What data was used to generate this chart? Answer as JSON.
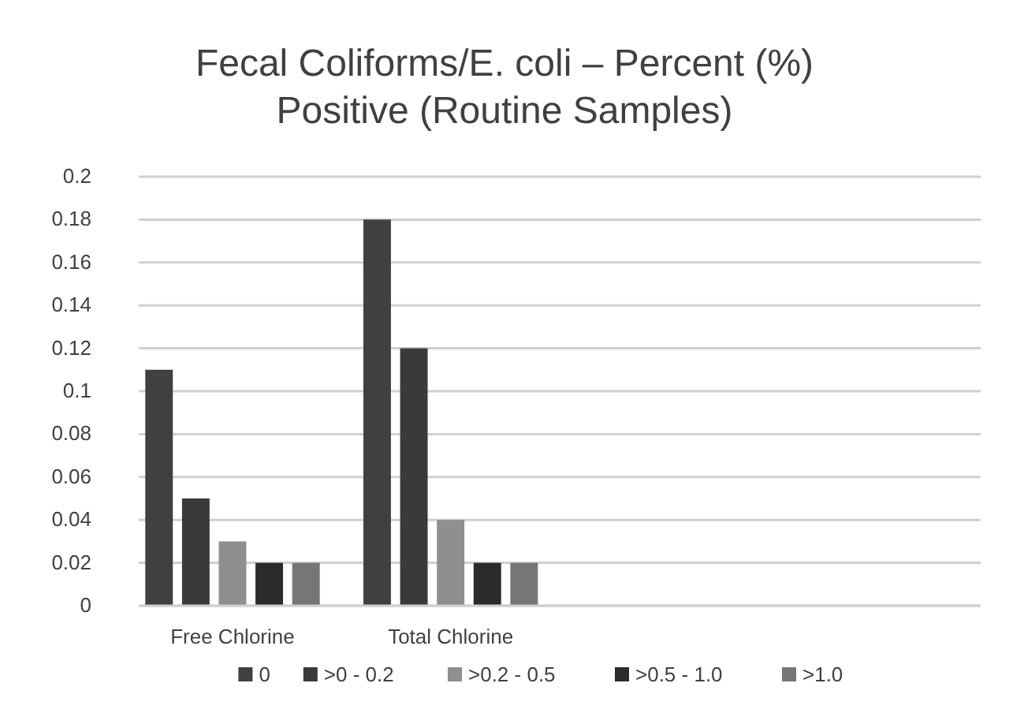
{
  "chart_data": {
    "type": "bar",
    "title": "Fecal Coliforms/E. coli – Percent (%) Positive (Routine Samples)",
    "categories": [
      "Free Chlorine",
      "Total Chlorine",
      null,
      null
    ],
    "series": [
      {
        "name": "0",
        "color": "#404040",
        "values": [
          0.11,
          0.18,
          null,
          null
        ]
      },
      {
        "name": ">0 - 0.2",
        "color": "#3a3a3a",
        "values": [
          0.05,
          0.12,
          null,
          null
        ]
      },
      {
        "name": ">0.2 - 0.5",
        "color": "#8f8f8f",
        "values": [
          0.03,
          0.04,
          null,
          null
        ]
      },
      {
        "name": ">0.5 - 1.0",
        "color": "#2b2b2b",
        "values": [
          0.02,
          0.02,
          null,
          null
        ]
      },
      {
        "name": ">1.0",
        "color": "#767676",
        "values": [
          0.02,
          0.02,
          null,
          null
        ]
      }
    ],
    "ylim": [
      0,
      0.2
    ],
    "yticks": [
      0,
      0.02,
      0.04,
      0.06,
      0.08,
      0.1,
      0.12,
      0.14,
      0.16,
      0.18,
      0.2
    ],
    "grid": "y",
    "legend": "bottom"
  }
}
